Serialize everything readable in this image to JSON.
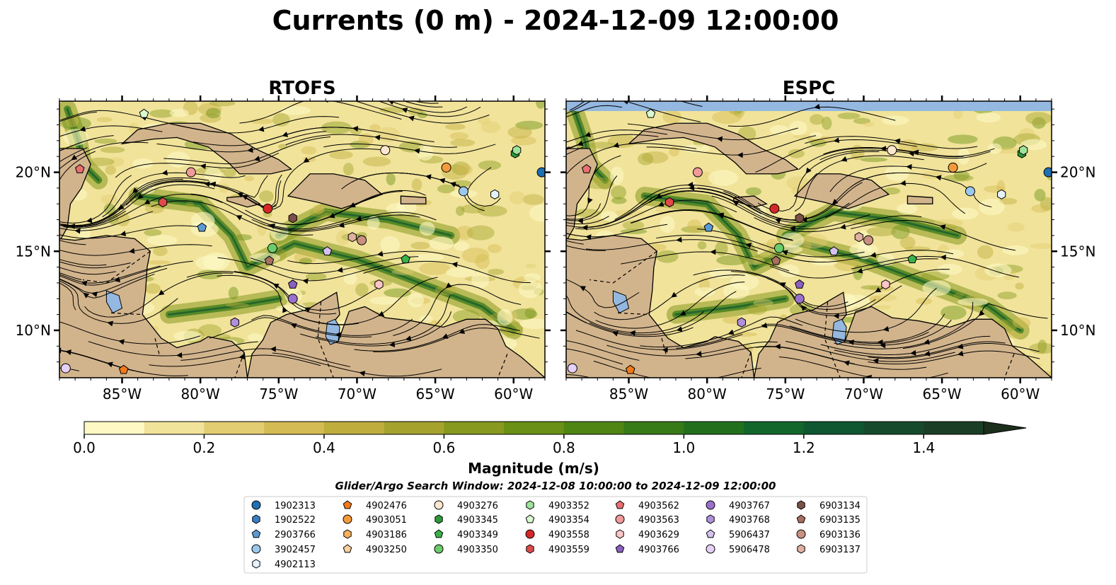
{
  "title": "Currents (0 m) - 2024-12-09 12:00:00",
  "colorbar_label": "Magnitude (m/s)",
  "colorbar_ticks": [
    "0.0",
    "0.2",
    "0.4",
    "0.6",
    "0.8",
    "1.0",
    "1.2",
    "1.4"
  ],
  "search_window": "Glider/Argo Search Window: 2024-12-08 10:00:00 to 2024-12-09 12:00:00",
  "colors": {
    "land": "#d2b48c",
    "lake": "#94b8e0",
    "colormap": [
      "#fef9c4",
      "#f1e39a",
      "#e2cd72",
      "#d4bb53",
      "#bfae3e",
      "#a5a32e",
      "#87991f",
      "#6a9015",
      "#4f8513",
      "#377a18",
      "#22701d",
      "#12662c",
      "#0f5730",
      "#154b2c",
      "#1b3f26",
      "#1b2f1c"
    ]
  },
  "chart_data": [
    {
      "type": "heatmap",
      "title": "RTOFS",
      "variable": "surface current magnitude (m/s) with streamlines",
      "x_ticks": [
        "85°W",
        "80°W",
        "75°W",
        "70°W",
        "65°W",
        "60°W"
      ],
      "y_ticks": [
        "10°N",
        "15°N",
        "20°N"
      ],
      "xlim": [
        -89,
        -58
      ],
      "ylim": [
        7,
        24.5
      ]
    },
    {
      "type": "heatmap",
      "title": "ESPC",
      "variable": "surface current magnitude (m/s) with streamlines",
      "x_ticks": [
        "85°W",
        "80°W",
        "75°W",
        "70°W",
        "65°W",
        "60°W"
      ],
      "y_ticks": [
        "10°N",
        "15°N",
        "20°N"
      ],
      "xlim": [
        -89,
        -58
      ],
      "ylim": [
        7,
        24.5
      ]
    },
    {
      "type": "colorbar",
      "vmin": 0.0,
      "vmax": 1.5,
      "step": 0.1,
      "extend": "max",
      "ticks": [
        0.0,
        0.2,
        0.4,
        0.6,
        0.8,
        1.0,
        1.2,
        1.4
      ],
      "label": "Magnitude (m/s)"
    },
    {
      "type": "scatter",
      "description": "Glider/Argo float positions shown on both panels",
      "floats": [
        {
          "id": "1902313",
          "marker": "circle",
          "color": "#1f6fb4",
          "lon": -58.2,
          "lat": 20.0
        },
        {
          "id": "2903766",
          "marker": "pentagon",
          "color": "#5a9bd4",
          "lon": -79.9,
          "lat": 16.5
        },
        {
          "id": "3902457",
          "marker": "circle",
          "color": "#9bc8ee",
          "lon": -63.2,
          "lat": 18.8
        },
        {
          "id": "4902113",
          "marker": "hexagon",
          "color": "#e6f3ff",
          "lon": -61.2,
          "lat": 18.6
        },
        {
          "id": "4902476",
          "marker": "pentagon",
          "color": "#f07a1a",
          "lon": -84.9,
          "lat": 7.5
        },
        {
          "id": "4903051",
          "marker": "circle",
          "color": "#f59a3a",
          "lon": -64.3,
          "lat": 20.3
        },
        {
          "id": "4903276",
          "marker": "circle",
          "color": "#fde6cf",
          "lon": -68.2,
          "lat": 21.4
        },
        {
          "id": "4903345",
          "marker": "hexagon",
          "color": "#2a9a3a",
          "lon": -59.9,
          "lat": 21.2
        },
        {
          "id": "4903349",
          "marker": "pentagon",
          "color": "#3ab04a",
          "lon": -66.9,
          "lat": 14.5
        },
        {
          "id": "4903350",
          "marker": "circle",
          "color": "#6acc6a",
          "lon": -75.4,
          "lat": 15.2
        },
        {
          "id": "4903352",
          "marker": "hexagon",
          "color": "#9ee39a",
          "lon": -59.8,
          "lat": 21.4
        },
        {
          "id": "4903354",
          "marker": "pentagon",
          "color": "#d8f8d0",
          "lon": -83.6,
          "lat": 23.7
        },
        {
          "id": "4903558",
          "marker": "circle",
          "color": "#d42828",
          "lon": -75.7,
          "lat": 17.7
        },
        {
          "id": "4903559",
          "marker": "hexagon",
          "color": "#e04a4a",
          "lon": -82.4,
          "lat": 18.1
        },
        {
          "id": "4903562",
          "marker": "pentagon",
          "color": "#e87070",
          "lon": -87.7,
          "lat": 20.2
        },
        {
          "id": "4903563",
          "marker": "circle",
          "color": "#f09a9a",
          "lon": -80.6,
          "lat": 20.0
        },
        {
          "id": "4903629",
          "marker": "hexagon",
          "color": "#fcc6c6",
          "lon": -68.6,
          "lat": 12.9
        },
        {
          "id": "4903766",
          "marker": "pentagon",
          "color": "#8a60c0",
          "lon": -74.1,
          "lat": 12.9
        },
        {
          "id": "4903767",
          "marker": "circle",
          "color": "#9a70cc",
          "lon": -74.1,
          "lat": 12.0
        },
        {
          "id": "4903768",
          "marker": "hexagon",
          "color": "#b090dc",
          "lon": -77.8,
          "lat": 10.5
        },
        {
          "id": "5906437",
          "marker": "pentagon",
          "color": "#d6c0f0",
          "lon": -71.9,
          "lat": 15.0
        },
        {
          "id": "5906478",
          "marker": "circle",
          "color": "#e4d0f8",
          "lon": -88.6,
          "lat": 7.6
        },
        {
          "id": "6903134",
          "marker": "hexagon",
          "color": "#7a5048",
          "lon": -74.1,
          "lat": 17.1
        },
        {
          "id": "6903135",
          "marker": "pentagon",
          "color": "#a87060",
          "lon": -75.6,
          "lat": 14.4
        },
        {
          "id": "6903136",
          "marker": "circle",
          "color": "#c89080",
          "lon": -69.7,
          "lat": 15.7
        },
        {
          "id": "6903137",
          "marker": "hexagon",
          "color": "#e0b0a0",
          "lon": -70.3,
          "lat": 15.9
        }
      ]
    }
  ]
}
